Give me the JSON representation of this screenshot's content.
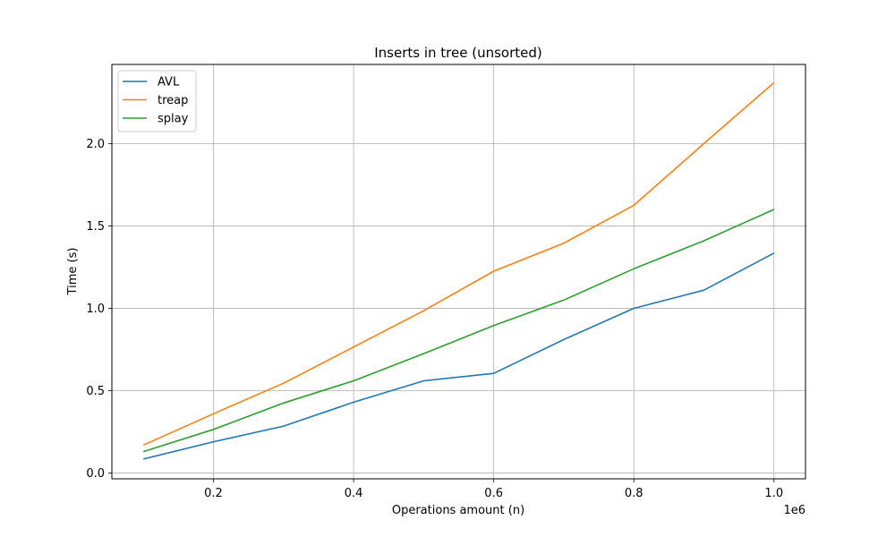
{
  "chart_data": {
    "type": "line",
    "title": "Inserts in tree (unsorted)",
    "xlabel": "Operations amount (n)",
    "ylabel": "Time (s)",
    "x_offset_label": "1e6",
    "x": [
      0.1,
      0.2,
      0.3,
      0.4,
      0.5,
      0.6,
      0.7,
      0.8,
      0.9,
      1.0
    ],
    "xlim": [
      0.055,
      1.045
    ],
    "ylim": [
      -0.035,
      2.48
    ],
    "xticks": [
      0.2,
      0.4,
      0.6,
      0.8,
      1.0
    ],
    "xtick_labels": [
      "0.2",
      "0.4",
      "0.6",
      "0.8",
      "1.0"
    ],
    "yticks": [
      0.0,
      0.5,
      1.0,
      1.5,
      2.0
    ],
    "ytick_labels": [
      "0.0",
      "0.5",
      "1.0",
      "1.5",
      "2.0"
    ],
    "grid": true,
    "legend_position": "top-left",
    "series": [
      {
        "name": "AVL",
        "color": "#1f77b4",
        "values": [
          0.085,
          0.19,
          0.285,
          0.43,
          0.56,
          0.605,
          0.81,
          1.0,
          1.11,
          1.335
        ]
      },
      {
        "name": "treap",
        "color": "#ff7f0e",
        "values": [
          0.17,
          0.36,
          0.545,
          0.765,
          0.985,
          1.225,
          1.395,
          1.625,
          2.0,
          2.37
        ]
      },
      {
        "name": "splay",
        "color": "#2ca02c",
        "values": [
          0.13,
          0.265,
          0.425,
          0.56,
          0.725,
          0.895,
          1.05,
          1.24,
          1.41,
          1.6
        ]
      }
    ]
  }
}
